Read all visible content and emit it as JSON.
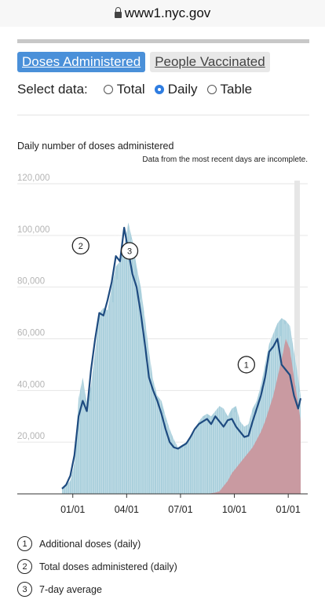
{
  "browser": {
    "url": "www1.nyc.gov"
  },
  "tabs": [
    {
      "label": "Doses Administered",
      "active": true
    },
    {
      "label": "People Vaccinated",
      "active": false
    }
  ],
  "select": {
    "label": "Select data:",
    "options": [
      {
        "label": "Total",
        "selected": false
      },
      {
        "label": "Daily",
        "selected": true
      },
      {
        "label": "Table",
        "selected": false
      }
    ]
  },
  "chart_title": "Daily number of doses administered",
  "chart_note": "Data from the most recent days are incomplete.",
  "legend": [
    {
      "num": "1",
      "label": "Additional doses (daily)"
    },
    {
      "num": "2",
      "label": "Total doses administered (daily)"
    },
    {
      "num": "3",
      "label": "7-day average"
    }
  ],
  "colors": {
    "total": "#a9cfdc",
    "additional": "#c99aa1",
    "average": "#1e4b80",
    "accent": "#4a90d9"
  },
  "chart_data": {
    "type": "area",
    "ylim": [
      0,
      120000
    ],
    "yticks": [
      20000,
      40000,
      60000,
      80000,
      100000,
      120000
    ],
    "ytick_labels": [
      "20,000",
      "40,000",
      "60,000",
      "80,000",
      "100,000",
      "120,000"
    ],
    "xtick_labels": [
      "01/01",
      "04/01",
      "07/01",
      "10/01",
      "01/01"
    ],
    "x_unit": "weeks after mid-December",
    "xticks": [
      2.6,
      15.6,
      28.6,
      41.6,
      54.6
    ],
    "annotations": [
      {
        "label": "1",
        "x": 44.5,
        "y": 50000
      },
      {
        "label": "2",
        "x": 4.5,
        "y": 96000
      },
      {
        "label": "3",
        "x": 16.3,
        "y": 94000
      }
    ],
    "series": [
      {
        "name": "Total doses administered (daily)",
        "x": [
          0,
          2,
          3,
          4,
          5,
          6,
          7,
          8,
          9,
          10,
          11,
          12,
          13,
          14,
          15,
          16,
          17,
          18,
          19,
          20,
          21,
          22,
          23,
          24,
          25,
          26,
          27,
          28,
          29,
          30,
          31,
          32,
          33,
          34,
          35,
          36,
          37,
          38,
          39,
          40,
          41,
          42,
          43,
          44,
          45,
          46,
          47,
          48,
          49,
          50,
          51,
          52,
          53,
          54,
          55,
          56,
          57,
          57.6
        ],
        "y": [
          2000,
          5000,
          12000,
          37000,
          45000,
          35000,
          42000,
          55000,
          70000,
          72000,
          71000,
          80000,
          88000,
          90000,
          96000,
          105000,
          98000,
          88000,
          80000,
          68000,
          55000,
          44000,
          38000,
          36000,
          30000,
          25000,
          21000,
          18000,
          19000,
          20000,
          22000,
          24000,
          28000,
          30000,
          31000,
          30000,
          32000,
          34000,
          33000,
          30000,
          33000,
          34000,
          28000,
          26000,
          27000,
          33000,
          36000,
          42000,
          50000,
          58000,
          62000,
          66000,
          68000,
          67000,
          65000,
          55000,
          45000,
          38000
        ]
      },
      {
        "name": "Additional doses (daily)",
        "x": [
          35,
          37,
          38,
          39,
          40,
          41,
          42,
          43,
          44,
          45,
          46,
          47,
          48,
          49,
          50,
          51,
          52,
          53,
          54,
          55,
          56,
          57,
          57.6
        ],
        "y": [
          0,
          500,
          1000,
          3000,
          5000,
          8000,
          10000,
          12000,
          14000,
          16000,
          18000,
          21000,
          24000,
          28000,
          33000,
          38000,
          45000,
          52000,
          60000,
          56000,
          45000,
          35000,
          28000
        ]
      },
      {
        "name": "7-day average",
        "x": [
          0,
          1,
          2,
          3,
          4,
          5,
          6,
          7,
          8,
          9,
          10,
          11,
          12,
          13,
          14,
          15,
          16,
          17,
          18,
          19,
          20,
          21,
          22,
          23,
          24,
          25,
          26,
          27,
          28,
          29,
          30,
          31,
          32,
          33,
          34,
          35,
          36,
          37,
          38,
          39,
          40,
          41,
          42,
          43,
          44,
          45,
          46,
          47,
          48,
          49,
          50,
          51,
          52,
          53,
          54,
          55,
          56,
          57,
          57.6
        ],
        "y": [
          2000,
          3500,
          7000,
          15000,
          30000,
          36000,
          32000,
          48000,
          60000,
          70000,
          69000,
          75000,
          82000,
          92000,
          90000,
          103000,
          94000,
          85000,
          80000,
          70000,
          58000,
          45000,
          40000,
          36000,
          31000,
          25000,
          20000,
          18000,
          17500,
          18500,
          19500,
          22000,
          25000,
          27000,
          28000,
          29000,
          27000,
          30000,
          28000,
          26000,
          28500,
          29000,
          26000,
          24000,
          22000,
          22500,
          28000,
          33000,
          38000,
          45000,
          55000,
          57000,
          60000,
          50000,
          48000,
          46000,
          38000,
          33000,
          37000
        ]
      }
    ]
  }
}
